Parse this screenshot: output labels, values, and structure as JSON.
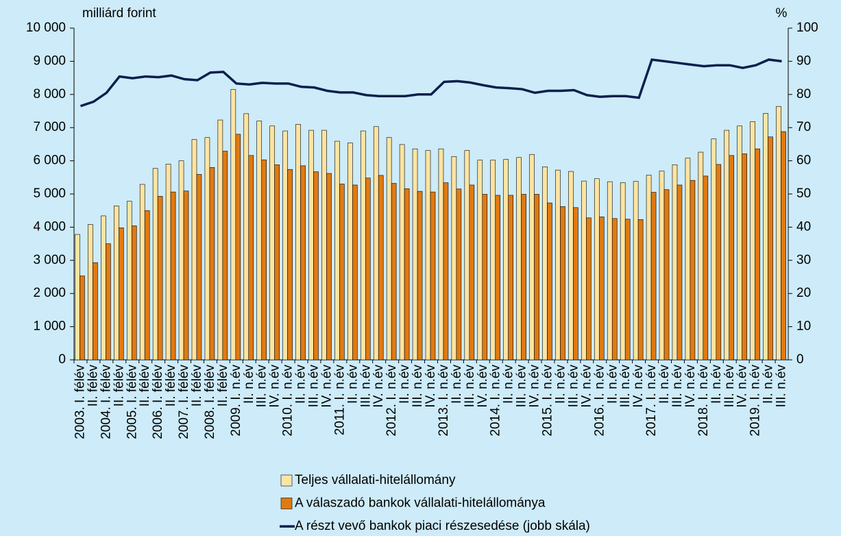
{
  "chart_data": {
    "type": "bar",
    "y_label": "milliárd forint",
    "y2_label": "%",
    "categories": [
      "2003. I. félév",
      "II. félév",
      "2004. I. félév",
      "II. félév",
      "2005. I. félév",
      "II. félév",
      "2006. I. félév",
      "II. félév",
      "2007. I. félév",
      "II. félév",
      "2008. I. félév",
      "II. félév",
      "2009. I. n.év",
      "II. n.év",
      "III. n.év",
      "IV. n.év",
      "2010. I. n.év",
      "II. n.év",
      "III. n.év",
      "IV. n.év",
      "2011. I. n.év",
      "II. n.év",
      "III. n.év",
      "IV. n.év",
      "2012. I. n.év",
      "II. n.év",
      "III. n.év",
      "IV. n.év",
      "2013. I. n.év",
      "II. n.év",
      "III. n.év",
      "IV. n.év",
      "2014. I. n.év",
      "II. n.év",
      "III. n.év",
      "IV. n.év",
      "2015. I. n.év",
      "II. n.év",
      "III. n.év",
      "IV. n.év",
      "2016. I. n.év",
      "II. n.év",
      "III. n.év",
      "IV. n.év",
      "2017. I. n.év",
      "II. n.év",
      "III. n.év",
      "IV. n.év",
      "2018. I. n.év",
      "II. n.év",
      "III. n.év",
      "IV. n.év",
      "2019. I. n.év",
      "II. n.év",
      "III. n.év"
    ],
    "series": [
      {
        "name": "Teljes vállalati-hitelállomány",
        "type": "bar",
        "color": "#fde4a2",
        "values": [
          3780,
          4080,
          4340,
          4640,
          4780,
          5290,
          5770,
          5900,
          6000,
          6640,
          6700,
          7230,
          8150,
          7420,
          7200,
          7050,
          6900,
          7100,
          6920,
          6920,
          6590,
          6540,
          6900,
          7030,
          6700,
          6490,
          6360,
          6310,
          6360,
          6130,
          6310,
          6020,
          6020,
          6040,
          6100,
          6190,
          5820,
          5720,
          5680,
          5390,
          5460,
          5370,
          5340,
          5380,
          5570,
          5690,
          5880,
          6080,
          6260,
          6660,
          6920,
          7050,
          7180,
          7430,
          7640
        ]
      },
      {
        "name": "A válaszadó bankok vállalati-hitelállománya",
        "type": "bar",
        "color": "#e07a12",
        "values": [
          2530,
          2930,
          3500,
          3980,
          4040,
          4500,
          4930,
          5060,
          5090,
          5590,
          5800,
          6290,
          6800,
          6160,
          6030,
          5880,
          5740,
          5850,
          5670,
          5620,
          5300,
          5270,
          5480,
          5560,
          5320,
          5160,
          5080,
          5060,
          5340,
          5150,
          5270,
          4990,
          4960,
          4960,
          4990,
          4990,
          4730,
          4620,
          4590,
          4280,
          4310,
          4260,
          4240,
          4230,
          5050,
          5130,
          5270,
          5410,
          5540,
          5890,
          6160,
          6210,
          6360,
          6720,
          6880
        ]
      },
      {
        "name": "A részt vevő bankok piaci részesedése (jobb skála)",
        "type": "line",
        "axis": "y2",
        "color": "#0c1f4c",
        "values": [
          76.5,
          77.8,
          80.5,
          85.4,
          84.9,
          85.4,
          85.2,
          85.7,
          84.6,
          84.3,
          86.6,
          86.8,
          83.3,
          83.0,
          83.5,
          83.3,
          83.3,
          82.3,
          82.1,
          81.1,
          80.6,
          80.6,
          79.8,
          79.5,
          79.5,
          79.5,
          80.0,
          80.0,
          83.8,
          84.0,
          83.6,
          82.8,
          82.1,
          81.9,
          81.6,
          80.5,
          81.1,
          81.1,
          81.3,
          79.8,
          79.3,
          79.5,
          79.5,
          79.0,
          90.5,
          90.0,
          89.5,
          89.0,
          88.5,
          88.8,
          88.8,
          88.0,
          88.8,
          90.5,
          90.0
        ]
      }
    ],
    "ylim": [
      0,
      10000
    ],
    "yticks": [
      0,
      {
        "value": 1000,
        "label": "1 000"
      },
      {
        "value": 2000,
        "label": "2 000"
      },
      {
        "value": 3000,
        "label": "3 000"
      },
      {
        "value": 4000,
        "label": "4 000"
      },
      {
        "value": 5000,
        "label": "5 000"
      },
      {
        "value": 6000,
        "label": "6 000"
      },
      {
        "value": 7000,
        "label": "7 000"
      },
      {
        "value": 8000,
        "label": "8 000"
      },
      {
        "value": 9000,
        "label": "9 000"
      },
      {
        "value": 10000,
        "label": "10 000"
      }
    ],
    "y2lim": [
      0,
      100
    ],
    "y2ticks": [
      0,
      10,
      20,
      30,
      40,
      50,
      60,
      70,
      80,
      90,
      100
    ]
  }
}
